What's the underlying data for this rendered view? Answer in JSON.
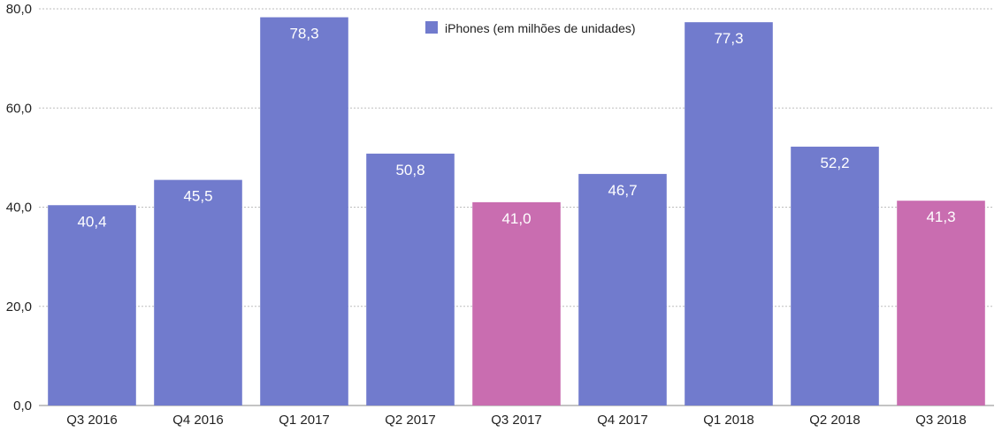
{
  "chart_data": {
    "type": "bar",
    "categories": [
      "Q3 2016",
      "Q4 2016",
      "Q1 2017",
      "Q2 2017",
      "Q3 2017",
      "Q4 2017",
      "Q1 2018",
      "Q2 2018",
      "Q3 2018"
    ],
    "series": [
      {
        "name": "iPhones (em milhões de unidades)",
        "values": [
          40.4,
          45.5,
          78.3,
          50.8,
          41.0,
          46.7,
          77.3,
          52.2,
          41.3
        ],
        "value_labels": [
          "40,4",
          "45,5",
          "78,3",
          "50,8",
          "41,0",
          "46,7",
          "77,3",
          "52,2",
          "41,3"
        ]
      }
    ],
    "highlighted": [
      false,
      false,
      false,
      false,
      true,
      false,
      false,
      false,
      true
    ],
    "y_ticks": [
      0,
      20,
      40,
      60,
      80
    ],
    "y_tick_labels": [
      "0,0",
      "20,0",
      "40,0",
      "60,0",
      "80,0"
    ],
    "ylim": [
      0,
      80
    ],
    "grid": true,
    "legend_position": "top-center",
    "colors": {
      "bar": "#717bcd",
      "highlight": "#c96db0",
      "grid": "#bdbdbd",
      "text": "#222222"
    }
  }
}
